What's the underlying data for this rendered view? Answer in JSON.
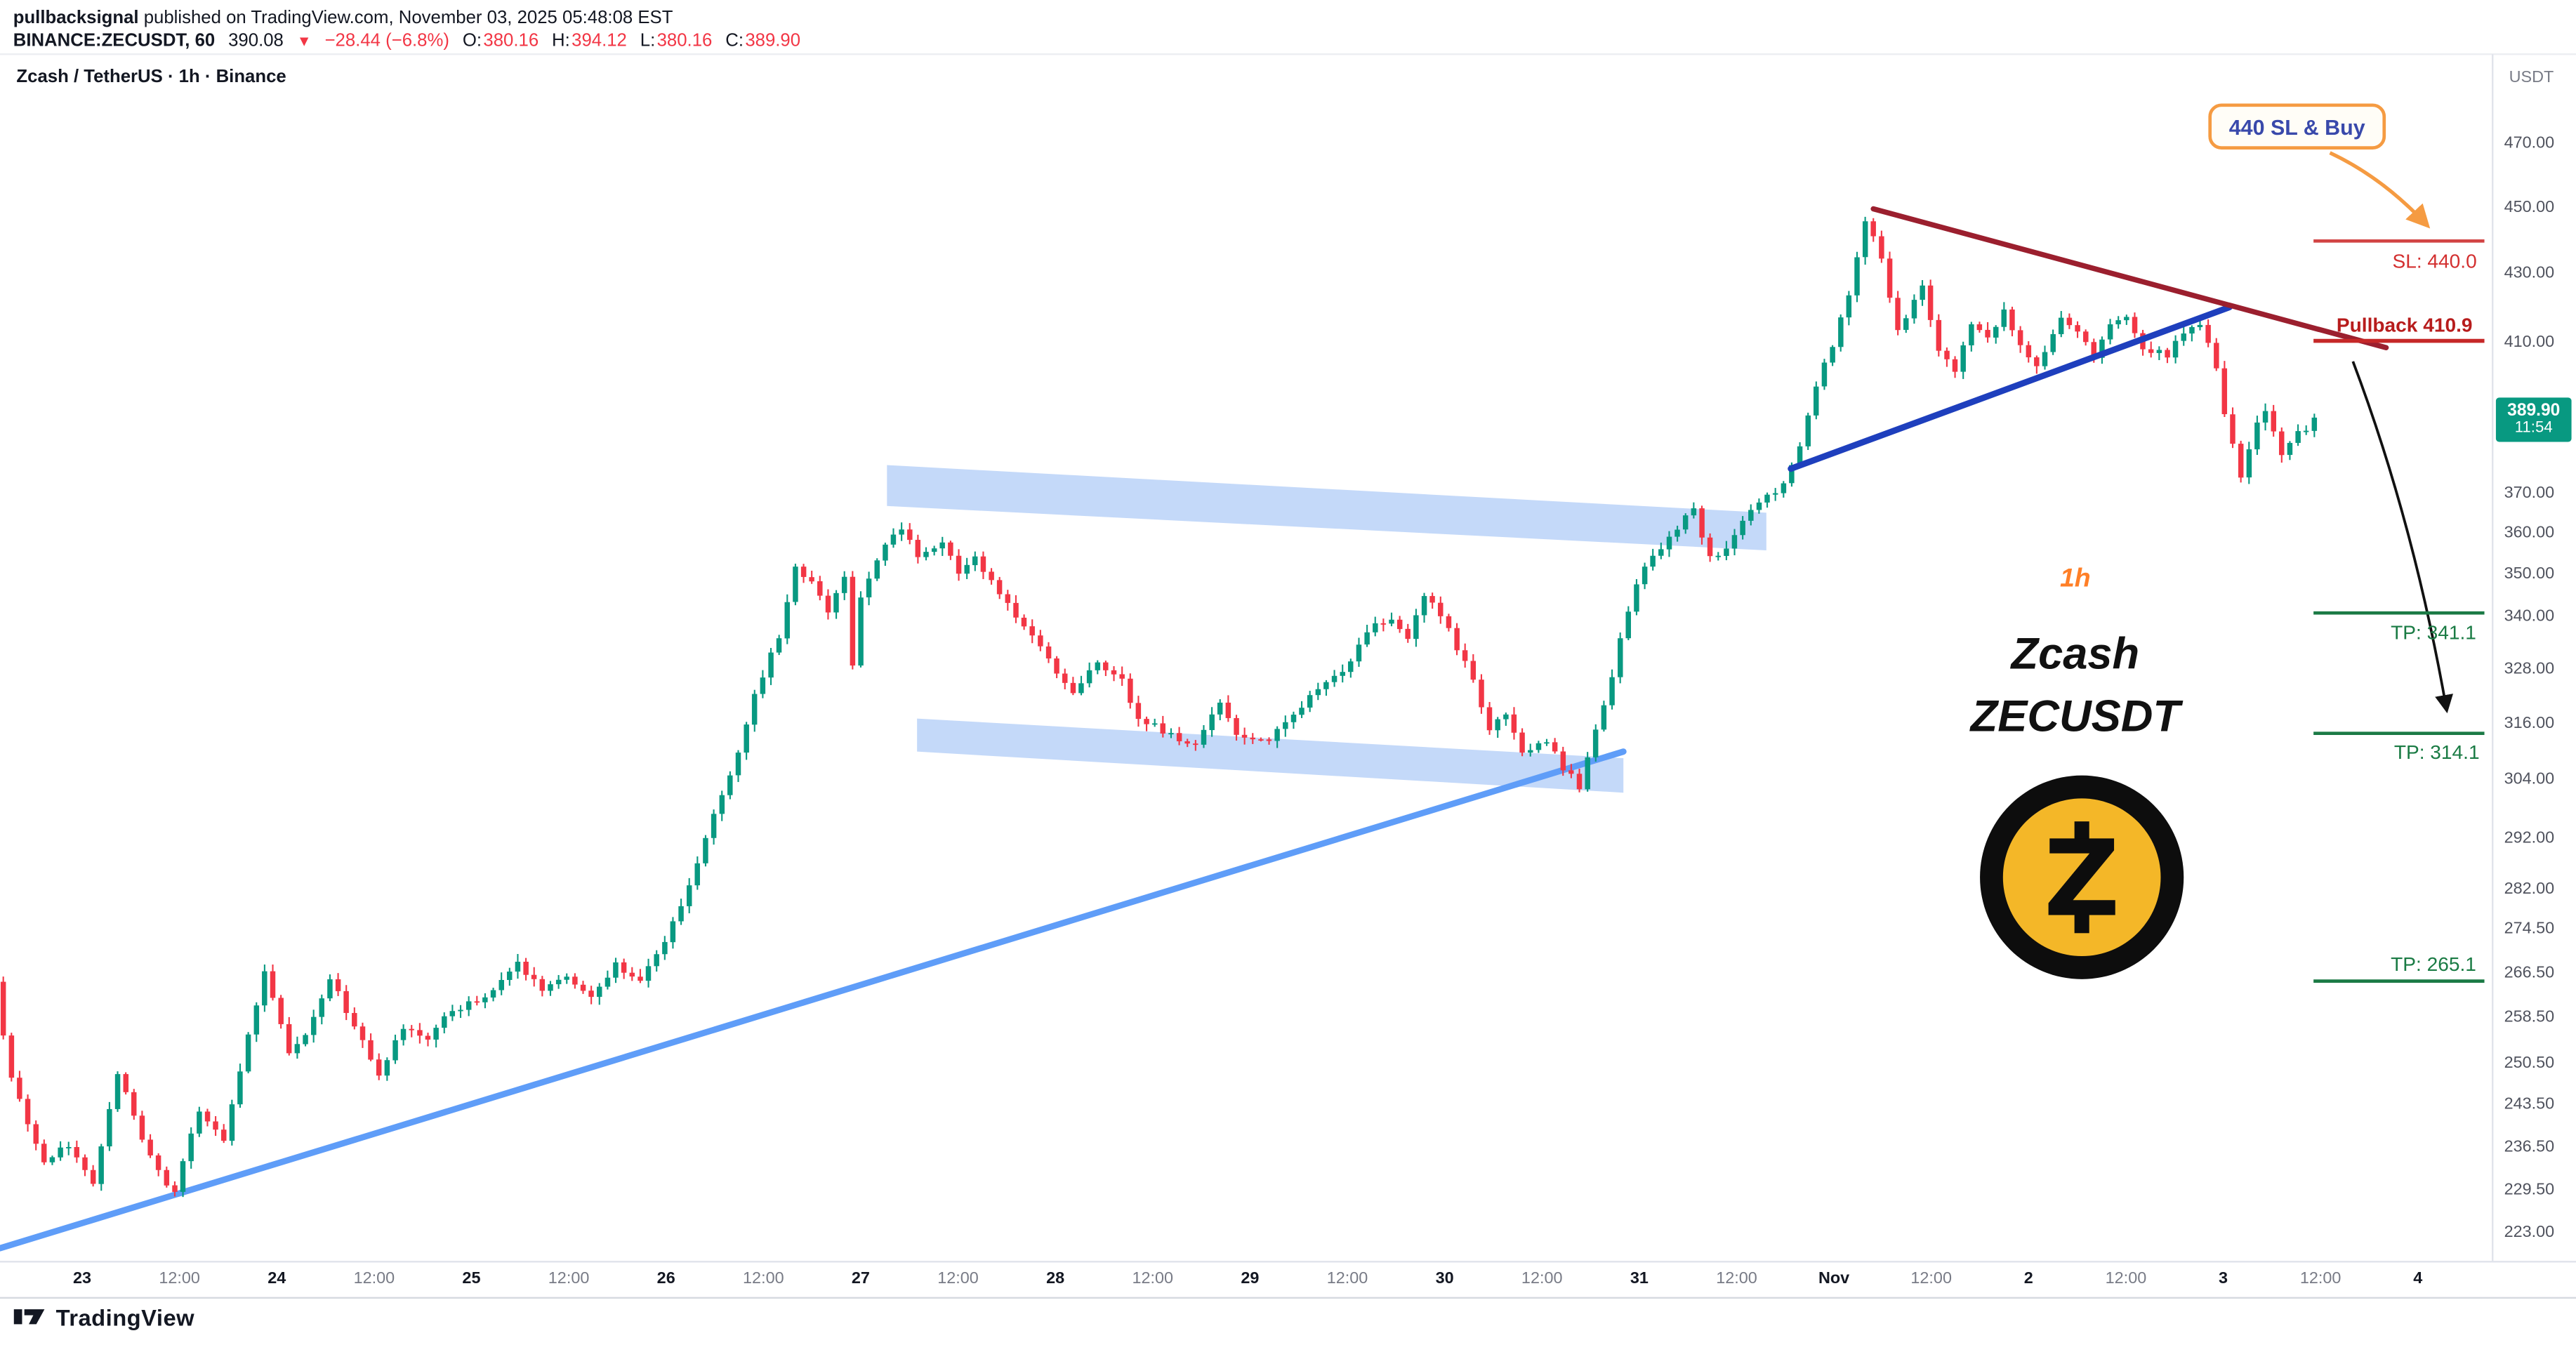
{
  "header": {
    "author": "pullbacksignal",
    "published": " published on TradingView.com, November 03, 2025 05:48:08 EST",
    "symbol": "BINANCE:ZECUSDT, 60",
    "last": "390.08",
    "change_icon": "▼",
    "change": "−28.44 (−6.8%)",
    "o_label": "O:",
    "o": "380.16",
    "h_label": "H:",
    "h": "394.12",
    "l_label": "L:",
    "l": "380.16",
    "c_label": "C:",
    "c": "389.90"
  },
  "chart_header": {
    "title": "Zcash / TetherUS · 1h · Binance",
    "currency": "USDT"
  },
  "badge": {
    "price": "389.90",
    "countdown": "11:54",
    "color": "#089981"
  },
  "annotations": {
    "callout": "440 SL & Buy",
    "sl": "SL: 440.0",
    "pullback": "Pullback 410.9",
    "tp1": "TP: 341.1",
    "tp2": "TP: 314.1",
    "tp3": "TP: 265.1",
    "timeframe": "1h",
    "wm1": "Zcash",
    "wm2": "ZECUSDT"
  },
  "footer": {
    "brand": "TradingView"
  },
  "chart_data": {
    "type": "candlestick",
    "title": "Zcash / TetherUS 1h Binance",
    "symbol": "ZECUSDT",
    "exchange": "Binance",
    "interval": "1h",
    "scale": "log",
    "up_color": "#089981",
    "down_color": "#f23645",
    "last_price": 389.9,
    "candle_count": 284,
    "y_ticks": [
      470,
      450,
      430,
      410,
      370,
      360,
      350,
      340,
      328,
      316,
      304,
      292,
      282,
      274.5,
      266.5,
      258.5,
      250.5,
      243.5,
      236.5,
      229.5,
      223
    ],
    "x_tick_labels": [
      "23",
      "12:00",
      "24",
      "12:00",
      "25",
      "12:00",
      "26",
      "12:00",
      "27",
      "12:00",
      "28",
      "12:00",
      "29",
      "12:00",
      "30",
      "12:00",
      "31",
      "12:00",
      "Nov",
      "12:00",
      "2",
      "12:00",
      "3",
      "12:00",
      "4"
    ],
    "price_keypoints": [
      [
        0,
        265
      ],
      [
        1,
        256
      ],
      [
        2,
        248
      ],
      [
        4,
        240
      ],
      [
        6,
        234
      ],
      [
        9,
        237
      ],
      [
        12,
        231
      ],
      [
        15,
        249
      ],
      [
        18,
        238
      ],
      [
        21,
        231
      ],
      [
        22,
        229.5
      ],
      [
        25,
        243
      ],
      [
        28,
        238
      ],
      [
        31,
        255
      ],
      [
        33,
        267
      ],
      [
        36,
        252
      ],
      [
        38,
        255
      ],
      [
        41,
        266
      ],
      [
        44,
        257
      ],
      [
        47,
        248
      ],
      [
        50,
        257
      ],
      [
        53,
        255
      ],
      [
        56,
        260
      ],
      [
        60,
        262
      ],
      [
        64,
        268
      ],
      [
        67,
        264
      ],
      [
        70,
        266
      ],
      [
        73,
        262
      ],
      [
        76,
        268
      ],
      [
        79,
        265
      ],
      [
        82,
        272
      ],
      [
        85,
        283
      ],
      [
        88,
        297
      ],
      [
        91,
        310
      ],
      [
        93,
        322
      ],
      [
        96,
        336
      ],
      [
        98,
        352
      ],
      [
        100,
        348
      ],
      [
        102,
        342
      ],
      [
        104,
        350
      ],
      [
        105,
        329
      ],
      [
        106,
        345
      ],
      [
        109,
        357
      ],
      [
        111,
        362
      ],
      [
        113,
        354
      ],
      [
        116,
        358
      ],
      [
        118,
        350
      ],
      [
        120,
        355
      ],
      [
        123,
        345
      ],
      [
        126,
        338
      ],
      [
        129,
        330
      ],
      [
        132,
        323
      ],
      [
        135,
        330
      ],
      [
        138,
        326
      ],
      [
        140,
        317
      ],
      [
        144,
        314
      ],
      [
        147,
        311
      ],
      [
        150,
        321
      ],
      [
        152,
        314
      ],
      [
        156,
        312.5
      ],
      [
        159,
        318
      ],
      [
        162,
        324
      ],
      [
        165,
        327
      ],
      [
        168,
        337
      ],
      [
        171,
        340
      ],
      [
        173,
        335
      ],
      [
        175,
        345
      ],
      [
        177,
        341
      ],
      [
        179,
        333
      ],
      [
        181,
        326
      ],
      [
        183,
        315
      ],
      [
        185,
        318
      ],
      [
        187,
        310
      ],
      [
        190,
        312
      ],
      [
        192,
        307
      ],
      [
        194,
        303
      ],
      [
        196,
        315
      ],
      [
        198,
        327
      ],
      [
        200,
        342
      ],
      [
        202,
        352
      ],
      [
        204,
        357
      ],
      [
        206,
        362
      ],
      [
        208,
        366
      ],
      [
        210,
        354
      ],
      [
        212,
        356
      ],
      [
        214,
        364
      ],
      [
        217,
        370
      ],
      [
        219,
        372
      ],
      [
        221,
        383
      ],
      [
        223,
        398
      ],
      [
        225,
        410
      ],
      [
        227,
        424
      ],
      [
        229,
        447
      ],
      [
        231,
        434
      ],
      [
        233,
        414
      ],
      [
        235,
        422
      ],
      [
        236,
        427
      ],
      [
        238,
        408
      ],
      [
        240,
        403
      ],
      [
        242,
        416
      ],
      [
        244,
        412
      ],
      [
        246,
        419
      ],
      [
        248,
        410
      ],
      [
        250,
        404
      ],
      [
        253,
        418
      ],
      [
        255,
        414
      ],
      [
        257,
        406
      ],
      [
        259,
        415
      ],
      [
        261,
        417
      ],
      [
        263,
        409
      ],
      [
        266,
        407
      ],
      [
        268,
        413
      ],
      [
        270,
        415
      ],
      [
        272,
        404
      ],
      [
        273,
        391
      ],
      [
        275,
        374
      ],
      [
        277,
        388
      ],
      [
        278,
        391
      ],
      [
        280,
        380
      ],
      [
        281,
        384
      ],
      [
        283,
        387
      ],
      [
        284,
        389.9
      ]
    ],
    "levels": [
      {
        "name": "sl",
        "price": 440.0
      },
      {
        "name": "pullback",
        "price": 410.9
      },
      {
        "name": "tp1",
        "price": 341.1
      },
      {
        "name": "tp2",
        "price": 314.1
      },
      {
        "name": "tp3",
        "price": 265.1
      }
    ],
    "trendlines": [
      {
        "name": "support",
        "color": "#5f9df8",
        "width": 3.8,
        "from": [
          -0.4,
          220.8
        ],
        "to": [
          198.4,
          310.2
        ]
      },
      {
        "name": "breakout",
        "color": "#1e3fbd",
        "width": 3.8,
        "from": [
          218.9,
          376.5
        ],
        "to": [
          272.6,
          420.5
        ]
      },
      {
        "name": "resistance",
        "color": "#9b1f2e",
        "width": 3.2,
        "from": [
          229,
          449.8
        ],
        "to": [
          291.8,
          409
        ]
      }
    ],
    "channels": [
      {
        "name": "upper-zone",
        "color": "#9cc0f5",
        "opacity": 0.6,
        "x1": 108.2,
        "x2": 215.9,
        "top1": 377.4,
        "bot1": 367.0,
        "top2": 365.3,
        "bot2": 356.0
      },
      {
        "name": "lower-zone",
        "color": "#9cc0f5",
        "opacity": 0.6,
        "x1": 111.9,
        "x2": 198.4,
        "top1": 317.3,
        "bot1": 310.2,
        "top2": 308.8,
        "bot2": 301.6
      }
    ]
  }
}
